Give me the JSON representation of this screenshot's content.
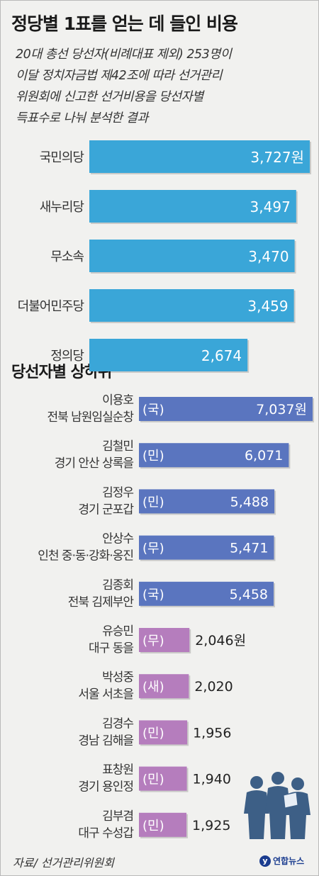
{
  "title": "정당별 1표를 얻는 데 들인 비용",
  "subtitle": "20대 총선 당선자(비례대표 제외) 253명이\n이달 정치자금법 제42조에 따라 선거관리\n위원회에 신고한 선거비용을 당선자별\n득표수로 나눠 분석한 결과",
  "section2_title": "당선자별 상하위",
  "source": "자료/ 선거관리위원회",
  "logo": "연합뉴스",
  "logo_mark": "y",
  "colors": {
    "party_bar": "#3aa6d8",
    "top_bar": "#5a75bf",
    "bottom_bar": "#b57dbd"
  },
  "chart_data": [
    {
      "type": "bar",
      "orientation": "horizontal",
      "categories": [
        "국민의당",
        "새누리당",
        "무소속",
        "더불어민주당",
        "정의당"
      ],
      "values": [
        3727,
        3497,
        3470,
        3459,
        2674
      ],
      "labels": [
        "3,727원",
        "3,497",
        "3,470",
        "3,459",
        "2,674"
      ]
    },
    {
      "type": "bar",
      "orientation": "horizontal",
      "items": [
        {
          "name": "이용호",
          "district": "전북 남원임실순창",
          "party": "(국)",
          "value": 7037,
          "label": "7,037원",
          "group": "top"
        },
        {
          "name": "김철민",
          "district": "경기 안산 상록을",
          "party": "(민)",
          "value": 6071,
          "label": "6,071",
          "group": "top"
        },
        {
          "name": "김정우",
          "district": "경기 군포갑",
          "party": "(민)",
          "value": 5488,
          "label": "5,488",
          "group": "top"
        },
        {
          "name": "안상수",
          "district": "인천 중·동·강화·옹진",
          "party": "(무)",
          "value": 5471,
          "label": "5,471",
          "group": "top"
        },
        {
          "name": "김종회",
          "district": "전북 김제부안",
          "party": "(국)",
          "value": 5458,
          "label": "5,458",
          "group": "top"
        },
        {
          "name": "유승민",
          "district": "대구 동을",
          "party": "(무)",
          "value": 2046,
          "label": "2,046원",
          "group": "bottom"
        },
        {
          "name": "박성중",
          "district": "서울 서초을",
          "party": "(새)",
          "value": 2020,
          "label": "2,020",
          "group": "bottom"
        },
        {
          "name": "김경수",
          "district": "경남 김해을",
          "party": "(민)",
          "value": 1956,
          "label": "1,956",
          "group": "bottom"
        },
        {
          "name": "표창원",
          "district": "경기 용인정",
          "party": "(민)",
          "value": 1940,
          "label": "1,940",
          "group": "bottom"
        },
        {
          "name": "김부겸",
          "district": "대구 수성갑",
          "party": "(민)",
          "value": 1925,
          "label": "1,925",
          "group": "bottom"
        }
      ]
    }
  ]
}
